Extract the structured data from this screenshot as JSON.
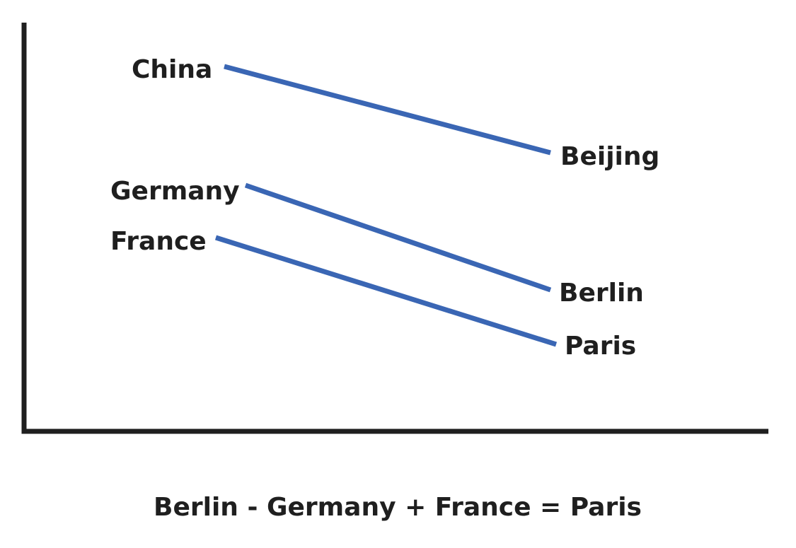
{
  "pairs": [
    {
      "from": "China",
      "to": "Beijing"
    },
    {
      "from": "Germany",
      "to": "Berlin"
    },
    {
      "from": "France",
      "to": "Paris"
    }
  ],
  "equation": "Berlin - Germany + France = Paris",
  "colors": {
    "line": "#3a66b4",
    "axis": "#1f1f1f",
    "text": "#1f1f1f"
  }
}
